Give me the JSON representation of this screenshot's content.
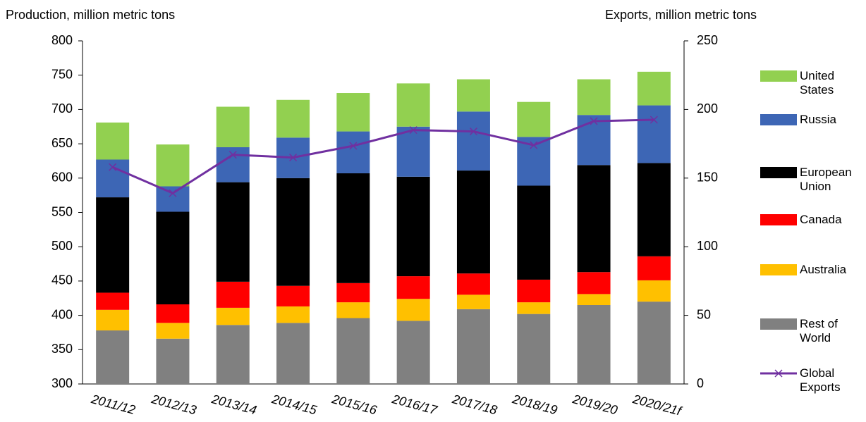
{
  "chart_data": {
    "type": "bar",
    "stacked": true,
    "y_label": "Production, million metric tons",
    "y2_label": "Exports, million metric tons",
    "categories": [
      "2011/12",
      "2012/13",
      "2013/14",
      "2014/15",
      "2015/16",
      "2016/17",
      "2017/18",
      "2018/19",
      "2019/20",
      "2020/21f"
    ],
    "series": [
      {
        "name": "Rest of World",
        "color": "#808080",
        "values": [
          378,
          366,
          386,
          389,
          396,
          392,
          409,
          402,
          415,
          420
        ]
      },
      {
        "name": "Australia",
        "color": "#ffc000",
        "values": [
          30,
          23,
          25,
          24,
          23,
          32,
          21,
          17,
          16,
          31
        ]
      },
      {
        "name": "Canada",
        "color": "#ff0000",
        "values": [
          25,
          27,
          38,
          30,
          28,
          33,
          31,
          33,
          32,
          35
        ]
      },
      {
        "name": "European Union",
        "color": "#000000",
        "values": [
          139,
          135,
          145,
          157,
          160,
          145,
          150,
          137,
          156,
          136
        ]
      },
      {
        "name": "Russia",
        "color": "#3d66b5",
        "values": [
          55,
          37,
          51,
          59,
          61,
          73,
          86,
          71,
          73,
          84
        ]
      },
      {
        "name": "United States",
        "color": "#92d050",
        "values": [
          54,
          61,
          59,
          55,
          56,
          63,
          47,
          51,
          52,
          49
        ]
      },
      {
        "name": "Global Exports",
        "color": "#7030a0",
        "type": "line",
        "axis": "y2",
        "values": [
          158,
          139,
          167,
          165,
          173.5,
          185,
          184,
          174,
          191.5,
          192.5
        ]
      }
    ],
    "ylim": [
      300,
      800
    ],
    "yticks": [
      300,
      350,
      400,
      450,
      500,
      550,
      600,
      650,
      700,
      750,
      800
    ],
    "y2lim": [
      0,
      250
    ],
    "y2ticks": [
      0,
      50,
      100,
      150,
      200,
      250
    ],
    "grid": false,
    "legend": "right"
  }
}
